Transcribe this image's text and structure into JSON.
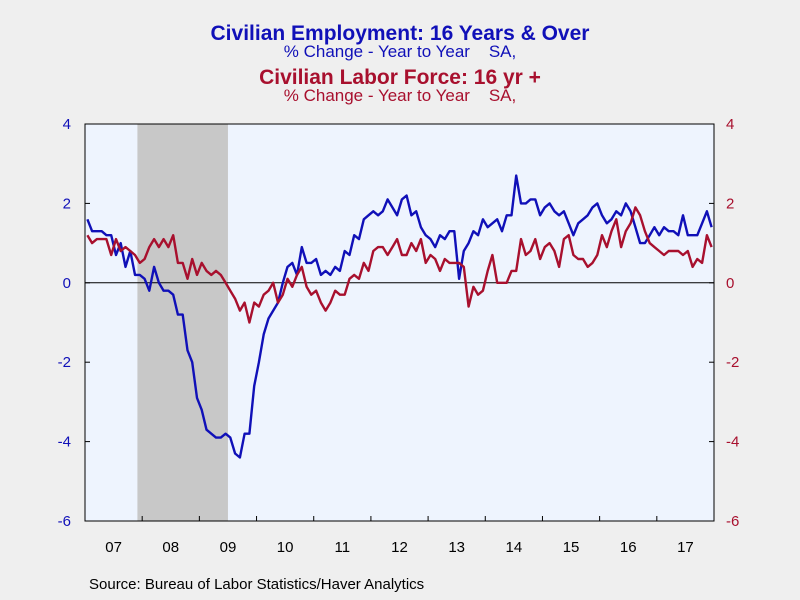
{
  "titles": {
    "series1_title": "Civilian Employment: 16 Years & Over",
    "series1_subtitle": "% Change - Year to Year    SA,",
    "series2_title": "Civilian Labor Force: 16 yr +",
    "series2_subtitle": "% Change - Year to Year    SA,"
  },
  "colors": {
    "series1": "#1010b8",
    "series2": "#a8102e",
    "plot_bg": "#eef4fe",
    "recession": "#c8c8c8",
    "page_bg": "#efefef"
  },
  "source": "Source:  Bureau of Labor Statistics/Haver Analytics",
  "chart_data": {
    "type": "line",
    "x_start": "2007-01",
    "x_end": "2017-12",
    "x_ticks": [
      "07",
      "08",
      "09",
      "10",
      "11",
      "12",
      "13",
      "14",
      "15",
      "16",
      "17"
    ],
    "ylim": [
      -6,
      4
    ],
    "y_ticks_left": [
      "4",
      "2",
      "0",
      "-2",
      "-4",
      "-6"
    ],
    "y_ticks_right": [
      "4",
      "2",
      "0",
      "-2",
      "-4",
      "-6"
    ],
    "zero_line": true,
    "recession_shading": {
      "start": "2007-12",
      "end": "2009-06"
    },
    "series": [
      {
        "name": "Civilian Employment: 16 Years & Over",
        "axis": "left",
        "values": [
          1.6,
          1.3,
          1.3,
          1.3,
          1.2,
          1.2,
          0.7,
          1.0,
          0.4,
          0.8,
          0.2,
          0.2,
          0.1,
          -0.2,
          0.4,
          0.0,
          -0.2,
          -0.2,
          -0.3,
          -0.8,
          -0.8,
          -1.7,
          -2.0,
          -2.9,
          -3.2,
          -3.7,
          -3.8,
          -3.9,
          -3.9,
          -3.8,
          -3.9,
          -4.3,
          -4.4,
          -3.8,
          -3.8,
          -2.6,
          -2.0,
          -1.3,
          -0.9,
          -0.7,
          -0.5,
          0.0,
          0.4,
          0.5,
          0.2,
          0.9,
          0.5,
          0.5,
          0.6,
          0.2,
          0.3,
          0.2,
          0.4,
          0.3,
          0.8,
          0.7,
          1.2,
          1.1,
          1.6,
          1.7,
          1.8,
          1.7,
          1.8,
          2.1,
          1.9,
          1.7,
          2.1,
          2.2,
          1.7,
          1.8,
          1.4,
          1.2,
          1.1,
          0.9,
          1.2,
          1.1,
          1.3,
          1.3,
          0.1,
          0.8,
          1.0,
          1.3,
          1.2,
          1.6,
          1.4,
          1.5,
          1.6,
          1.3,
          1.7,
          1.7,
          2.7,
          2.0,
          2.0,
          2.1,
          2.1,
          1.7,
          1.9,
          2.0,
          1.8,
          1.7,
          1.8,
          1.5,
          1.2,
          1.5,
          1.6,
          1.7,
          1.9,
          2.0,
          1.7,
          1.5,
          1.6,
          1.8,
          1.7,
          2.0,
          1.8,
          1.4,
          1.0,
          1.0,
          1.2,
          1.4,
          1.2,
          1.4,
          1.3,
          1.3,
          1.2,
          1.7,
          1.2,
          1.2,
          1.2,
          1.5,
          1.8,
          1.4
        ]
      },
      {
        "name": "Civilian Labor Force: 16 yr +",
        "axis": "right",
        "values": [
          1.2,
          1.0,
          1.1,
          1.1,
          1.1,
          0.7,
          1.1,
          0.8,
          0.9,
          0.8,
          0.7,
          0.5,
          0.6,
          0.9,
          1.1,
          0.9,
          1.1,
          0.9,
          1.2,
          0.5,
          0.5,
          0.1,
          0.6,
          0.2,
          0.5,
          0.3,
          0.2,
          0.3,
          0.2,
          0.0,
          -0.2,
          -0.4,
          -0.7,
          -0.5,
          -1.0,
          -0.5,
          -0.6,
          -0.3,
          -0.2,
          0.0,
          -0.5,
          -0.3,
          0.1,
          -0.1,
          0.2,
          0.4,
          -0.1,
          -0.3,
          -0.2,
          -0.5,
          -0.7,
          -0.5,
          -0.2,
          -0.3,
          -0.3,
          0.1,
          0.2,
          0.1,
          0.5,
          0.3,
          0.8,
          0.9,
          0.9,
          0.7,
          0.9,
          1.1,
          0.7,
          0.7,
          1.0,
          0.8,
          1.1,
          0.5,
          0.7,
          0.6,
          0.3,
          0.6,
          0.5,
          0.5,
          0.5,
          0.4,
          -0.6,
          -0.1,
          -0.3,
          -0.2,
          0.3,
          0.7,
          0.0,
          0.0,
          0.0,
          0.3,
          0.3,
          1.1,
          0.7,
          0.8,
          1.1,
          0.6,
          0.9,
          1.0,
          0.8,
          0.4,
          1.1,
          1.2,
          0.7,
          0.6,
          0.6,
          0.4,
          0.5,
          0.7,
          1.2,
          0.9,
          1.3,
          1.6,
          0.9,
          1.3,
          1.5,
          1.9,
          1.7,
          1.3,
          1.0,
          0.9,
          0.8,
          0.7,
          0.8,
          0.8,
          0.8,
          0.7,
          0.8,
          0.4,
          0.6,
          0.5,
          1.2,
          0.9
        ]
      }
    ]
  }
}
